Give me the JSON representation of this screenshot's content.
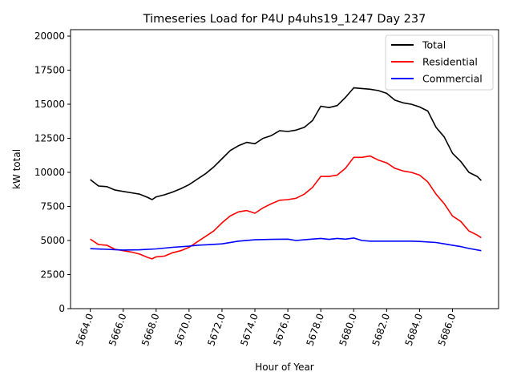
{
  "chart_data": {
    "type": "line",
    "title": "Timeseries Load for P4U p4uhs19_1247  Day 237",
    "xlabel": "Hour of Year",
    "ylabel": "kW total",
    "xlim": [
      5662.8,
      5688.8
    ],
    "ylim": [
      0,
      20470
    ],
    "xticks": [
      5664,
      5666,
      5668,
      5670,
      5672,
      5674,
      5676,
      5678,
      5680,
      5682,
      5684,
      5686
    ],
    "xtick_labels": [
      "5664.0",
      "5666.0",
      "5668.0",
      "5670.0",
      "5672.0",
      "5674.0",
      "5676.0",
      "5678.0",
      "5680.0",
      "5682.0",
      "5684.0",
      "5686.0"
    ],
    "yticks": [
      0,
      2500,
      5000,
      7500,
      10000,
      12500,
      15000,
      17500,
      20000
    ],
    "ytick_labels": [
      "0",
      "2500",
      "5000",
      "7500",
      "10000",
      "12500",
      "15000",
      "17500",
      "20000"
    ],
    "grid": false,
    "legend_position": "top-right",
    "series": [
      {
        "name": "Total",
        "color": "#000000",
        "x": [
          5664,
          5664.5,
          5665,
          5665.5,
          5666,
          5666.5,
          5667,
          5667.5,
          5667.75,
          5668,
          5668.5,
          5669,
          5669.5,
          5670,
          5670.5,
          5671,
          5671.5,
          5672,
          5672.5,
          5673,
          5673.5,
          5674,
          5674.5,
          5675,
          5675.5,
          5676,
          5676.5,
          5677,
          5677.5,
          5678,
          5678.5,
          5679,
          5679.5,
          5680,
          5680.5,
          5681,
          5681.5,
          5682,
          5682.5,
          5683,
          5683.5,
          5684,
          5684.5,
          5685,
          5685.5,
          5686,
          5686.5,
          5687,
          5687.5,
          5687.75
        ],
        "y": [
          9470,
          9000,
          8950,
          8700,
          8600,
          8500,
          8400,
          8150,
          8000,
          8200,
          8350,
          8550,
          8800,
          9100,
          9500,
          9900,
          10400,
          11000,
          11600,
          11950,
          12200,
          12100,
          12500,
          12700,
          13050,
          13000,
          13100,
          13300,
          13800,
          14850,
          14750,
          14900,
          15500,
          16200,
          16150,
          16100,
          16000,
          15800,
          15300,
          15100,
          15000,
          14800,
          14500,
          13300,
          12600,
          11400,
          10800,
          10000,
          9700,
          9400
        ]
      },
      {
        "name": "Residential",
        "color": "#ff0000",
        "x": [
          5664,
          5664.5,
          5665,
          5665.5,
          5666,
          5666.5,
          5667,
          5667.5,
          5667.75,
          5668,
          5668.5,
          5669,
          5669.5,
          5670,
          5670.5,
          5671,
          5671.5,
          5672,
          5672.5,
          5673,
          5673.5,
          5674,
          5674.5,
          5675,
          5675.5,
          5676,
          5676.5,
          5677,
          5677.5,
          5678,
          5678.5,
          5679,
          5679.5,
          5680,
          5680.5,
          5681,
          5681.5,
          5682,
          5682.5,
          5683,
          5683.5,
          5684,
          5684.5,
          5685,
          5685.5,
          5686,
          5686.5,
          5687,
          5687.5,
          5687.75
        ],
        "y": [
          5100,
          4700,
          4650,
          4350,
          4250,
          4150,
          4000,
          3750,
          3650,
          3800,
          3850,
          4100,
          4250,
          4500,
          4900,
          5300,
          5700,
          6300,
          6800,
          7100,
          7200,
          7000,
          7400,
          7700,
          7950,
          8000,
          8100,
          8400,
          8900,
          9700,
          9700,
          9800,
          10300,
          11100,
          11100,
          11200,
          10900,
          10700,
          10300,
          10100,
          10000,
          9800,
          9300,
          8400,
          7700,
          6800,
          6400,
          5700,
          5400,
          5200
        ]
      },
      {
        "name": "Commercial",
        "color": "#0000ff",
        "x": [
          5664,
          5665,
          5666,
          5667,
          5668,
          5669,
          5670,
          5670.5,
          5671,
          5672,
          5673,
          5674,
          5675,
          5676,
          5676.5,
          5677,
          5678,
          5678.5,
          5679,
          5679.5,
          5680,
          5680.5,
          5681,
          5682,
          5683,
          5683.5,
          5684,
          5685,
          5685.5,
          5686,
          5686.5,
          5687,
          5687.75
        ],
        "y": [
          4400,
          4350,
          4300,
          4320,
          4380,
          4500,
          4580,
          4650,
          4680,
          4750,
          4950,
          5050,
          5080,
          5100,
          5000,
          5050,
          5150,
          5080,
          5150,
          5100,
          5180,
          5000,
          4950,
          4950,
          4950,
          4950,
          4930,
          4850,
          4750,
          4650,
          4550,
          4420,
          4250
        ]
      }
    ]
  }
}
